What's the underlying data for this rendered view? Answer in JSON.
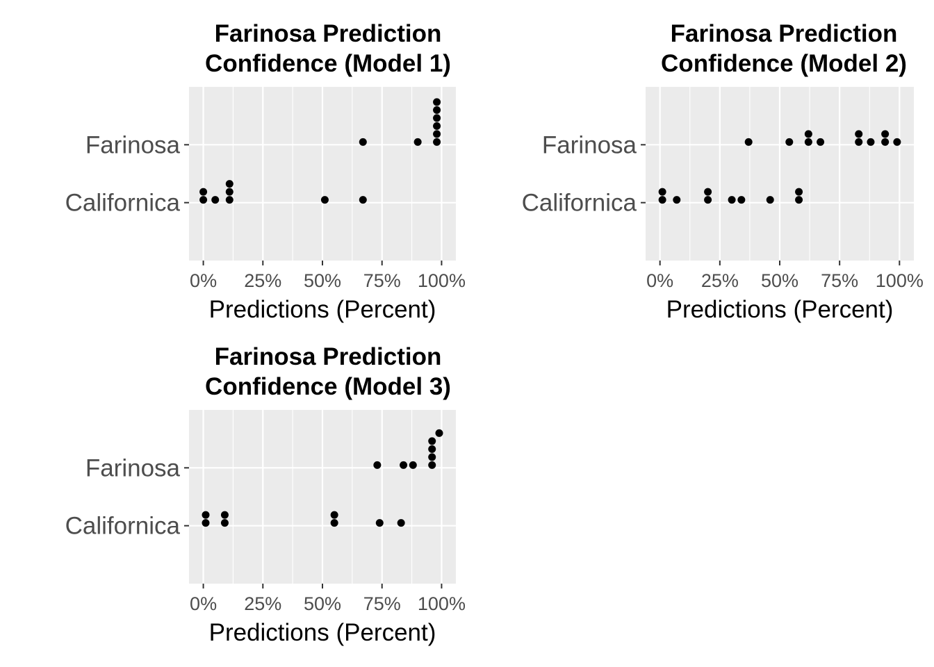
{
  "chart_data": [
    {
      "type": "scatter",
      "title_lines": [
        "Farinosa Prediction",
        "Confidence (Model 1)"
      ],
      "xlabel": "Predictions (Percent)",
      "ylabel": "",
      "xlim": [
        -0.06,
        1.06
      ],
      "x_ticks": [
        0,
        0.25,
        0.5,
        0.75,
        1
      ],
      "x_tick_labels": [
        "0%",
        "25%",
        "50%",
        "75%",
        "100%"
      ],
      "categories": [
        "Californica",
        "Farinosa"
      ],
      "grid": true,
      "series": [
        {
          "category": "Farinosa",
          "x": [
            0.67,
            0.9,
            0.98,
            0.98,
            0.98,
            0.98,
            0.98,
            0.98
          ]
        },
        {
          "category": "Californica",
          "x": [
            0.0,
            0.0,
            0.05,
            0.11,
            0.11,
            0.11,
            0.51,
            0.67
          ]
        }
      ]
    },
    {
      "type": "scatter",
      "title_lines": [
        "Farinosa Prediction",
        "Confidence (Model 2)"
      ],
      "xlabel": "Predictions (Percent)",
      "ylabel": "",
      "xlim": [
        -0.06,
        1.06
      ],
      "x_ticks": [
        0,
        0.25,
        0.5,
        0.75,
        1
      ],
      "x_tick_labels": [
        "0%",
        "25%",
        "50%",
        "75%",
        "100%"
      ],
      "categories": [
        "Californica",
        "Farinosa"
      ],
      "grid": true,
      "series": [
        {
          "category": "Farinosa",
          "x": [
            0.37,
            0.54,
            0.62,
            0.62,
            0.67,
            0.83,
            0.83,
            0.88,
            0.94,
            0.94,
            0.99
          ]
        },
        {
          "category": "Californica",
          "x": [
            0.01,
            0.01,
            0.07,
            0.2,
            0.2,
            0.3,
            0.34,
            0.46,
            0.58,
            0.58
          ]
        }
      ]
    },
    {
      "type": "scatter",
      "title_lines": [
        "Farinosa Prediction",
        "Confidence (Model 3)"
      ],
      "xlabel": "Predictions (Percent)",
      "ylabel": "",
      "xlim": [
        -0.06,
        1.06
      ],
      "x_ticks": [
        0,
        0.25,
        0.5,
        0.75,
        1
      ],
      "x_tick_labels": [
        "0%",
        "25%",
        "50%",
        "75%",
        "100%"
      ],
      "categories": [
        "Californica",
        "Farinosa"
      ],
      "grid": true,
      "series": [
        {
          "category": "Farinosa",
          "x": [
            0.73,
            0.84,
            0.88,
            0.96,
            0.96,
            0.96,
            0.96,
            0.99
          ]
        },
        {
          "category": "Californica",
          "x": [
            0.01,
            0.01,
            0.09,
            0.09,
            0.55,
            0.55,
            0.74,
            0.83
          ]
        }
      ]
    }
  ],
  "colors": {
    "panel_background": "#ebebeb",
    "grid_line": "#ffffff",
    "point": "#000000",
    "tick_text": "#4d4d4d",
    "title_text": "#000000"
  }
}
